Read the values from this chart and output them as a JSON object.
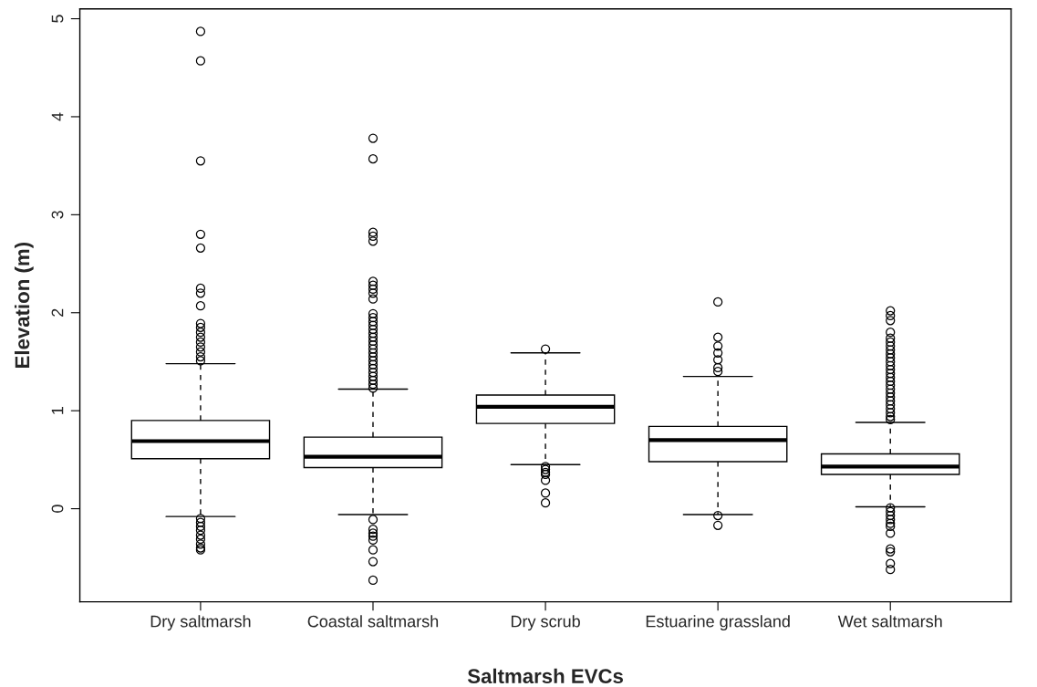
{
  "chart_data": {
    "type": "box",
    "xlabel": "Saltmarsh EVCs",
    "ylabel": "Elevation (m)",
    "categories": [
      "Dry saltmarsh",
      "Coastal saltmarsh",
      "Dry scrub",
      "Estuarine grassland",
      "Wet saltmarsh"
    ],
    "boxes": [
      {
        "low": -0.08,
        "q1": 0.51,
        "median": 0.69,
        "q3": 0.9,
        "high": 1.48,
        "outliers": [
          4.87,
          4.57,
          3.55,
          2.8,
          2.66,
          2.25,
          2.2,
          2.07,
          1.89,
          1.85,
          1.8,
          1.75,
          1.7,
          1.65,
          1.6,
          1.55,
          1.51,
          -0.1,
          -0.14,
          -0.18,
          -0.22,
          -0.27,
          -0.31,
          -0.36,
          -0.4,
          -0.42
        ]
      },
      {
        "low": -0.06,
        "q1": 0.42,
        "median": 0.53,
        "q3": 0.73,
        "high": 1.22,
        "outliers": [
          3.78,
          3.57,
          2.82,
          2.78,
          2.73,
          2.32,
          2.28,
          2.24,
          2.2,
          2.14,
          1.99,
          1.95,
          1.91,
          1.87,
          1.83,
          1.79,
          1.75,
          1.71,
          1.67,
          1.63,
          1.59,
          1.55,
          1.51,
          1.47,
          1.43,
          1.39,
          1.35,
          1.31,
          1.27,
          1.23,
          -0.11,
          -0.21,
          -0.25,
          -0.28,
          -0.32,
          -0.42,
          -0.54,
          -0.73
        ]
      },
      {
        "low": 0.45,
        "q1": 0.87,
        "median": 1.04,
        "q3": 1.16,
        "high": 1.59,
        "outliers": [
          1.63,
          0.43,
          0.4,
          0.37,
          0.35,
          0.29,
          0.16,
          0.06
        ]
      },
      {
        "low": -0.06,
        "q1": 0.48,
        "median": 0.7,
        "q3": 0.84,
        "high": 1.35,
        "outliers": [
          2.11,
          1.75,
          1.66,
          1.59,
          1.52,
          1.44,
          1.4,
          -0.07,
          -0.17
        ]
      },
      {
        "low": 0.02,
        "q1": 0.35,
        "median": 0.43,
        "q3": 0.56,
        "high": 0.88,
        "outliers": [
          2.02,
          1.97,
          1.92,
          1.8,
          1.74,
          1.7,
          1.66,
          1.62,
          1.58,
          1.54,
          1.5,
          1.46,
          1.42,
          1.38,
          1.34,
          1.3,
          1.26,
          1.22,
          1.18,
          1.14,
          1.1,
          1.06,
          1.02,
          0.98,
          0.94,
          0.91,
          0.01,
          -0.03,
          -0.07,
          -0.11,
          -0.15,
          -0.18,
          -0.25,
          -0.41,
          -0.44,
          -0.56,
          -0.62
        ]
      }
    ],
    "ylim": [
      -0.95,
      5.1
    ],
    "yticks": [
      0,
      1,
      2,
      3,
      4,
      5
    ],
    "grid": false
  }
}
